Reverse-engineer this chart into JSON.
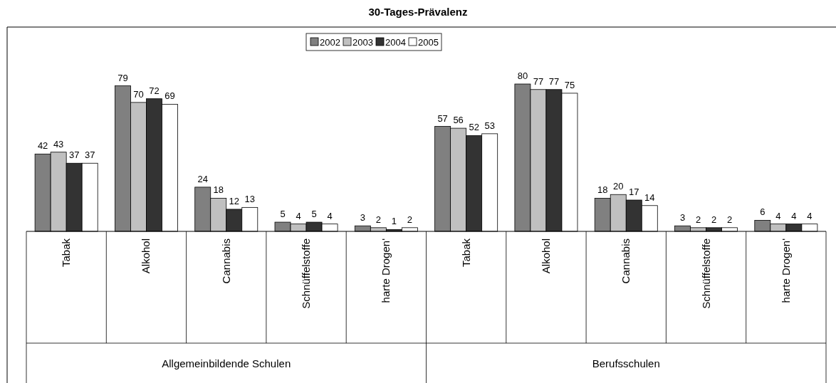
{
  "chart_data": {
    "type": "bar",
    "title": "30-Tages-Prävalenz",
    "categories": [
      "Tabak",
      "Alkohol",
      "Cannabis",
      "Schnüffelstoffe",
      "harte Drogen'",
      "Tabak",
      "Alkohol",
      "Cannabis",
      "Schnüffelstoffe",
      "harte Drogen'"
    ],
    "series": [
      {
        "name": "2002",
        "color": "#808080",
        "values": [
          42,
          79,
          24,
          5,
          3,
          57,
          80,
          18,
          3,
          6
        ]
      },
      {
        "name": "2003",
        "color": "#c0c0c0",
        "values": [
          43,
          70,
          18,
          4,
          2,
          56,
          77,
          20,
          2,
          4
        ]
      },
      {
        "name": "2004",
        "color": "#333333",
        "values": [
          37,
          72,
          12,
          5,
          1,
          52,
          77,
          17,
          2,
          4
        ]
      },
      {
        "name": "2005",
        "color": "#ffffff",
        "values": [
          37,
          69,
          13,
          4,
          2,
          53,
          75,
          14,
          2,
          4
        ]
      }
    ],
    "data_labels": true,
    "legend": "top",
    "annotations": [
      "Allgemeinbildende Schulen",
      "Berufsschulen"
    ]
  }
}
